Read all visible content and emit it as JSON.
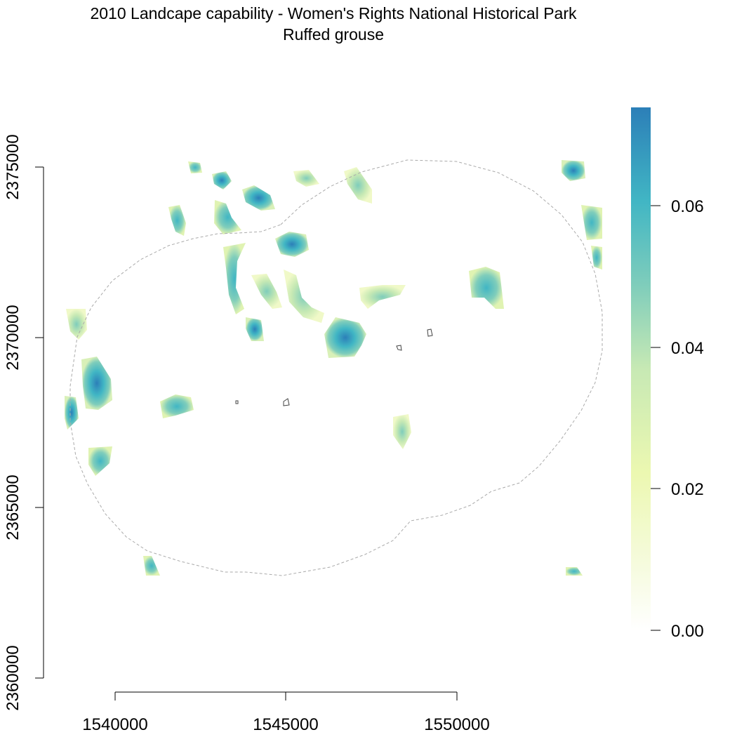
{
  "title": {
    "line1": "2010 Landcape capability - Women's Rights National Historical Park",
    "line2": "Ruffed grouse"
  },
  "axes": {
    "x_ticks": [
      "1540000",
      "1545000",
      "1550000"
    ],
    "y_ticks": [
      "2375000",
      "2370000",
      "2365000",
      "2360000"
    ]
  },
  "colorbar": {
    "ticks": [
      "0.06",
      "0.04",
      "0.02",
      "0.00"
    ],
    "range": [
      0.0,
      0.0735
    ],
    "colors": [
      "#ffffff",
      "#f6fbdf",
      "#ecf8b1",
      "#c7e9b4",
      "#7fcdbb",
      "#41b6c4",
      "#2c7fb8"
    ]
  },
  "map": {
    "x_range": [
      1538300,
      1554000
    ],
    "y_range": [
      2360000,
      2375000
    ],
    "park_boundary_style": "gray dashed"
  }
}
